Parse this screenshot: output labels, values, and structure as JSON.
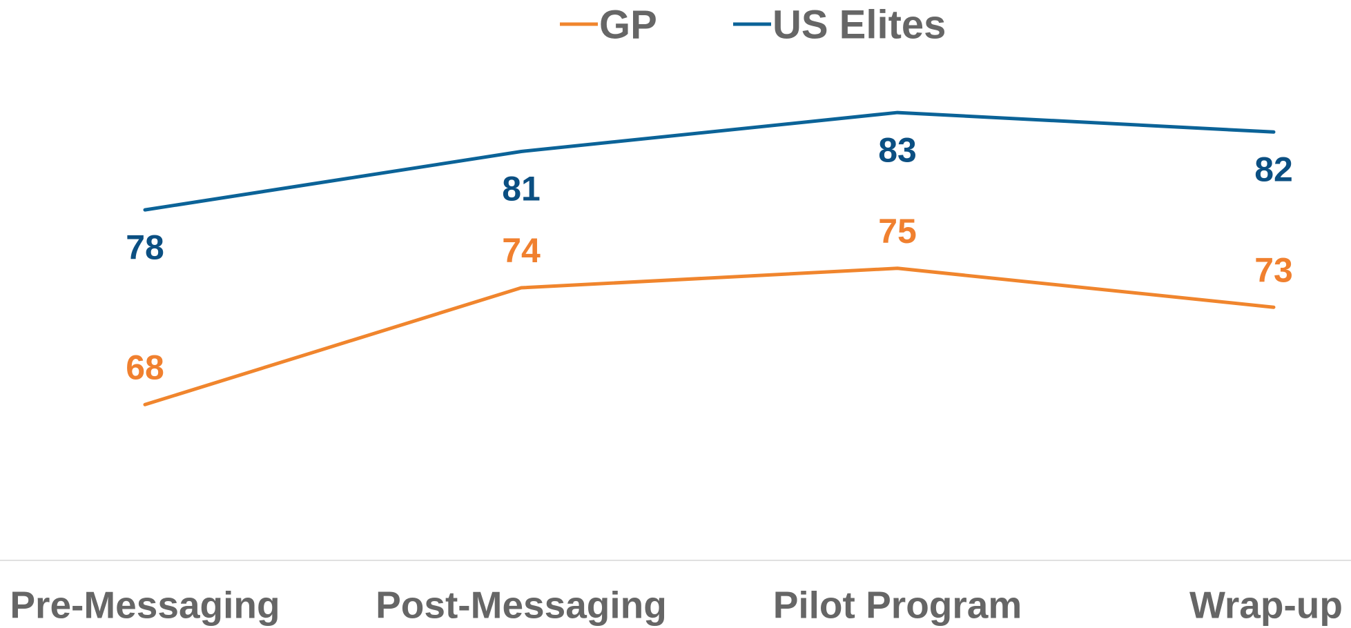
{
  "chart_data": {
    "type": "line",
    "categories": [
      "Pre-Messaging",
      "Post-Messaging",
      "Pilot Program",
      "Wrap-up"
    ],
    "series": [
      {
        "name": "GP",
        "color": "#f0852d",
        "values": [
          68,
          74,
          75,
          73
        ]
      },
      {
        "name": "US Elites",
        "color": "#0b6398",
        "values": [
          78,
          81,
          83,
          82
        ]
      }
    ],
    "ylim": [
      60,
      88
    ],
    "grid": false
  }
}
